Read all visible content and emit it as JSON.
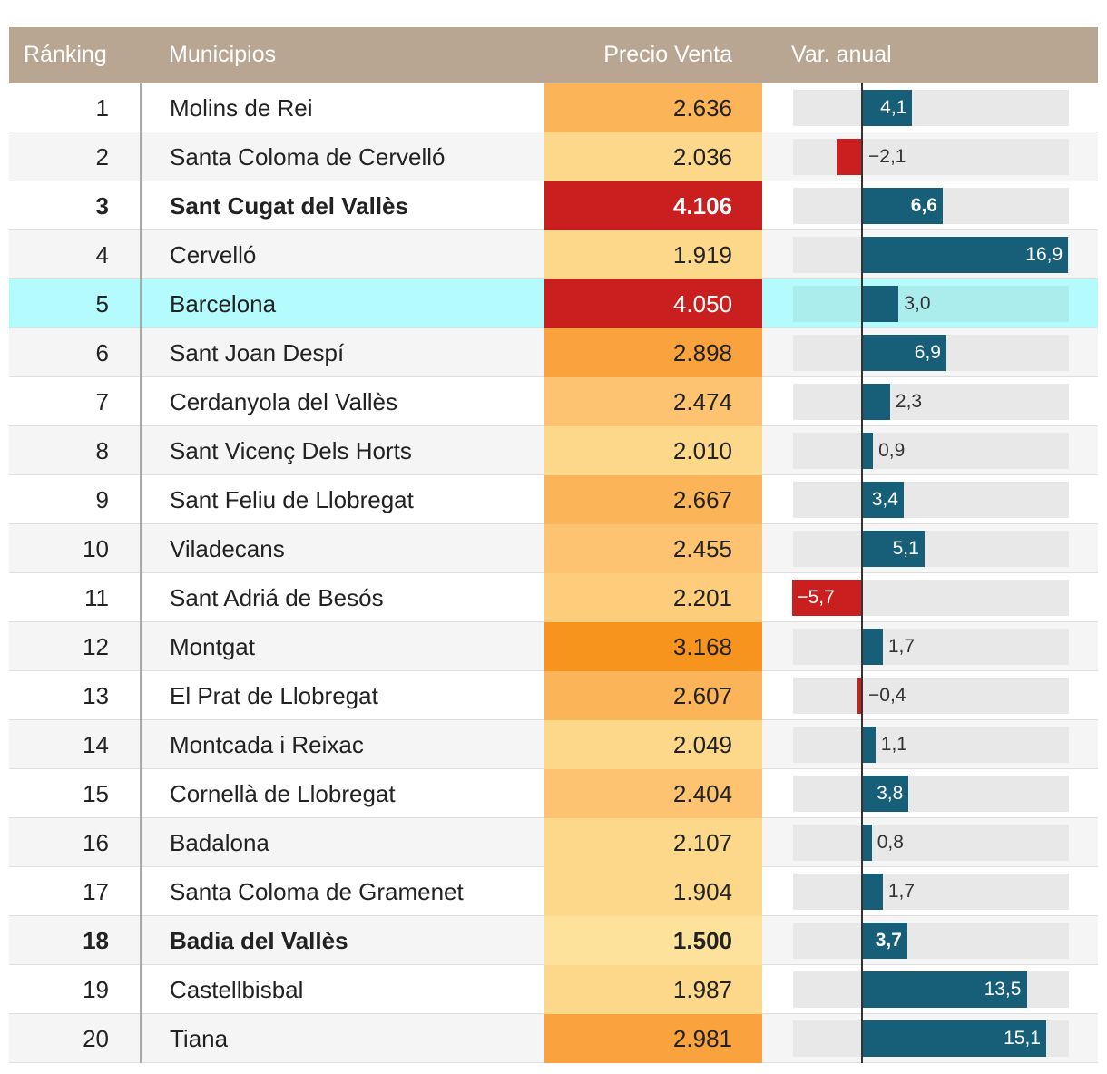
{
  "chart_data": {
    "type": "table",
    "columns": [
      "Ránking",
      "Municipios",
      "Precio Venta",
      "Var. anual"
    ],
    "rows": [
      {
        "rank": "1",
        "municipio": "Molins de Rei",
        "precio": "2.636",
        "precio_num": 2636,
        "var": "4,1",
        "var_num": 4.1,
        "bold": false,
        "highlight": false
      },
      {
        "rank": "2",
        "municipio": "Santa Coloma de Cervelló",
        "precio": "2.036",
        "precio_num": 2036,
        "var": "−2,1",
        "var_num": -2.1,
        "bold": false,
        "highlight": false
      },
      {
        "rank": "3",
        "municipio": "Sant Cugat del Vallès",
        "precio": "4.106",
        "precio_num": 4106,
        "var": "6,6",
        "var_num": 6.6,
        "bold": true,
        "highlight": false
      },
      {
        "rank": "4",
        "municipio": "Cervelló",
        "precio": "1.919",
        "precio_num": 1919,
        "var": "16,9",
        "var_num": 16.9,
        "bold": false,
        "highlight": false
      },
      {
        "rank": "5",
        "municipio": "Barcelona",
        "precio": "4.050",
        "precio_num": 4050,
        "var": "3,0",
        "var_num": 3.0,
        "bold": false,
        "highlight": true
      },
      {
        "rank": "6",
        "municipio": "Sant Joan Despí",
        "precio": "2.898",
        "precio_num": 2898,
        "var": "6,9",
        "var_num": 6.9,
        "bold": false,
        "highlight": false
      },
      {
        "rank": "7",
        "municipio": "Cerdanyola del Vallès",
        "precio": "2.474",
        "precio_num": 2474,
        "var": "2,3",
        "var_num": 2.3,
        "bold": false,
        "highlight": false
      },
      {
        "rank": "8",
        "municipio": "Sant Vicenç Dels Horts",
        "precio": "2.010",
        "precio_num": 2010,
        "var": "0,9",
        "var_num": 0.9,
        "bold": false,
        "highlight": false
      },
      {
        "rank": "9",
        "municipio": "Sant Feliu de Llobregat",
        "precio": "2.667",
        "precio_num": 2667,
        "var": "3,4",
        "var_num": 3.4,
        "bold": false,
        "highlight": false
      },
      {
        "rank": "10",
        "municipio": "Viladecans",
        "precio": "2.455",
        "precio_num": 2455,
        "var": "5,1",
        "var_num": 5.1,
        "bold": false,
        "highlight": false
      },
      {
        "rank": "11",
        "municipio": "Sant Adriá de Besós",
        "precio": "2.201",
        "precio_num": 2201,
        "var": "−5,7",
        "var_num": -5.7,
        "bold": false,
        "highlight": false
      },
      {
        "rank": "12",
        "municipio": "Montgat",
        "precio": "3.168",
        "precio_num": 3168,
        "var": "1,7",
        "var_num": 1.7,
        "bold": false,
        "highlight": false
      },
      {
        "rank": "13",
        "municipio": "El Prat de Llobregat",
        "precio": "2.607",
        "precio_num": 2607,
        "var": "−0,4",
        "var_num": -0.4,
        "bold": false,
        "highlight": false
      },
      {
        "rank": "14",
        "municipio": "Montcada i Reixac",
        "precio": "2.049",
        "precio_num": 2049,
        "var": "1,1",
        "var_num": 1.1,
        "bold": false,
        "highlight": false
      },
      {
        "rank": "15",
        "municipio": "Cornellà de Llobregat",
        "precio": "2.404",
        "precio_num": 2404,
        "var": "3,8",
        "var_num": 3.8,
        "bold": false,
        "highlight": false
      },
      {
        "rank": "16",
        "municipio": "Badalona",
        "precio": "2.107",
        "precio_num": 2107,
        "var": "0,8",
        "var_num": 0.8,
        "bold": false,
        "highlight": false
      },
      {
        "rank": "17",
        "municipio": "Santa Coloma de Gramenet",
        "precio": "1.904",
        "precio_num": 1904,
        "var": "1,7",
        "var_num": 1.7,
        "bold": false,
        "highlight": false
      },
      {
        "rank": "18",
        "municipio": "Badia del Vallès",
        "precio": "1.500",
        "precio_num": 1500,
        "var": "3,7",
        "var_num": 3.7,
        "bold": true,
        "highlight": false
      },
      {
        "rank": "19",
        "municipio": "Castellbisbal",
        "precio": "1.987",
        "precio_num": 1987,
        "var": "13,5",
        "var_num": 13.5,
        "bold": false,
        "highlight": false
      },
      {
        "rank": "20",
        "municipio": "Tiana",
        "precio": "2.981",
        "precio_num": 2981,
        "var": "15,1",
        "var_num": 15.1,
        "bold": false,
        "highlight": false
      }
    ],
    "var_range": [
      -5.7,
      16.9
    ]
  },
  "colors": {
    "header_bg": "#b8a692",
    "positive_bar": "#175e78",
    "negative_bar": "#c91f1f",
    "highlight_row": "#b3fbfc"
  }
}
